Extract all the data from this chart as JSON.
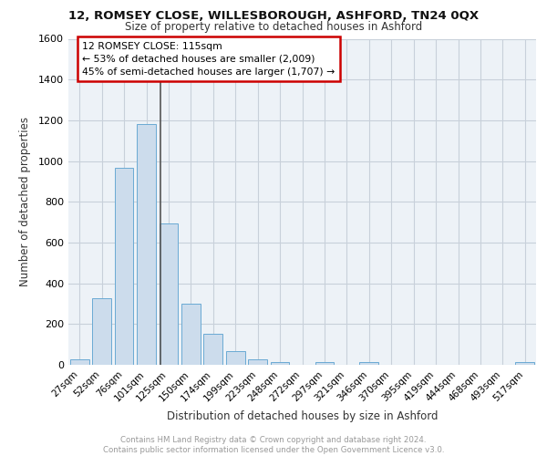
{
  "title1": "12, ROMSEY CLOSE, WILLESBOROUGH, ASHFORD, TN24 0QX",
  "title2": "Size of property relative to detached houses in Ashford",
  "xlabel": "Distribution of detached houses by size in Ashford",
  "ylabel": "Number of detached properties",
  "categories": [
    "27sqm",
    "52sqm",
    "76sqm",
    "101sqm",
    "125sqm",
    "150sqm",
    "174sqm",
    "199sqm",
    "223sqm",
    "248sqm",
    "272sqm",
    "297sqm",
    "321sqm",
    "346sqm",
    "370sqm",
    "395sqm",
    "419sqm",
    "444sqm",
    "468sqm",
    "493sqm",
    "517sqm"
  ],
  "values": [
    25,
    325,
    965,
    1180,
    695,
    300,
    150,
    65,
    25,
    12,
    0,
    12,
    0,
    12,
    0,
    0,
    0,
    0,
    0,
    0,
    12
  ],
  "bar_color": "#ccdcec",
  "bar_edge_color": "#6aaad4",
  "vline_x_index": 3.62,
  "annotation_line1": "12 ROMSEY CLOSE: 115sqm",
  "annotation_line2": "← 53% of detached houses are smaller (2,009)",
  "annotation_line3": "45% of semi-detached houses are larger (1,707) →",
  "annotation_box_fc": "#ffffff",
  "annotation_box_ec": "#cc0000",
  "vline_color": "#555555",
  "ylim": [
    0,
    1600
  ],
  "yticks": [
    0,
    200,
    400,
    600,
    800,
    1000,
    1200,
    1400,
    1600
  ],
  "footer1": "Contains HM Land Registry data © Crown copyright and database right 2024.",
  "footer2": "Contains public sector information licensed under the Open Government Licence v3.0.",
  "plot_bg_color": "#edf2f7",
  "grid_color": "#c8d0da"
}
